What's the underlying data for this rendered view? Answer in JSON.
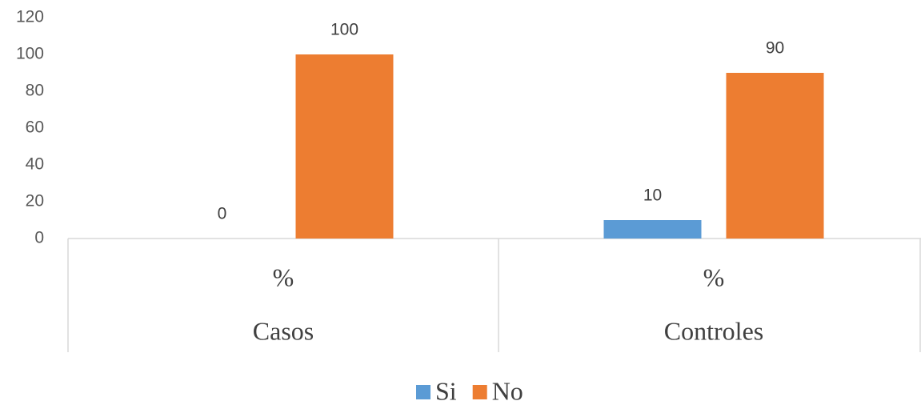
{
  "chart_data": {
    "type": "bar",
    "categories": [
      "Casos",
      "Controles"
    ],
    "subcategories": [
      "%",
      "%"
    ],
    "series": [
      {
        "name": "Si",
        "color": "#5b9bd5",
        "values": [
          0,
          10
        ]
      },
      {
        "name": "No",
        "color": "#ed7d31",
        "values": [
          100,
          90
        ]
      }
    ],
    "ylim": [
      0,
      120
    ],
    "yticks": [
      0,
      20,
      40,
      60,
      80,
      100,
      120
    ],
    "grid": false,
    "data_labels": true,
    "legend": "bottom"
  }
}
